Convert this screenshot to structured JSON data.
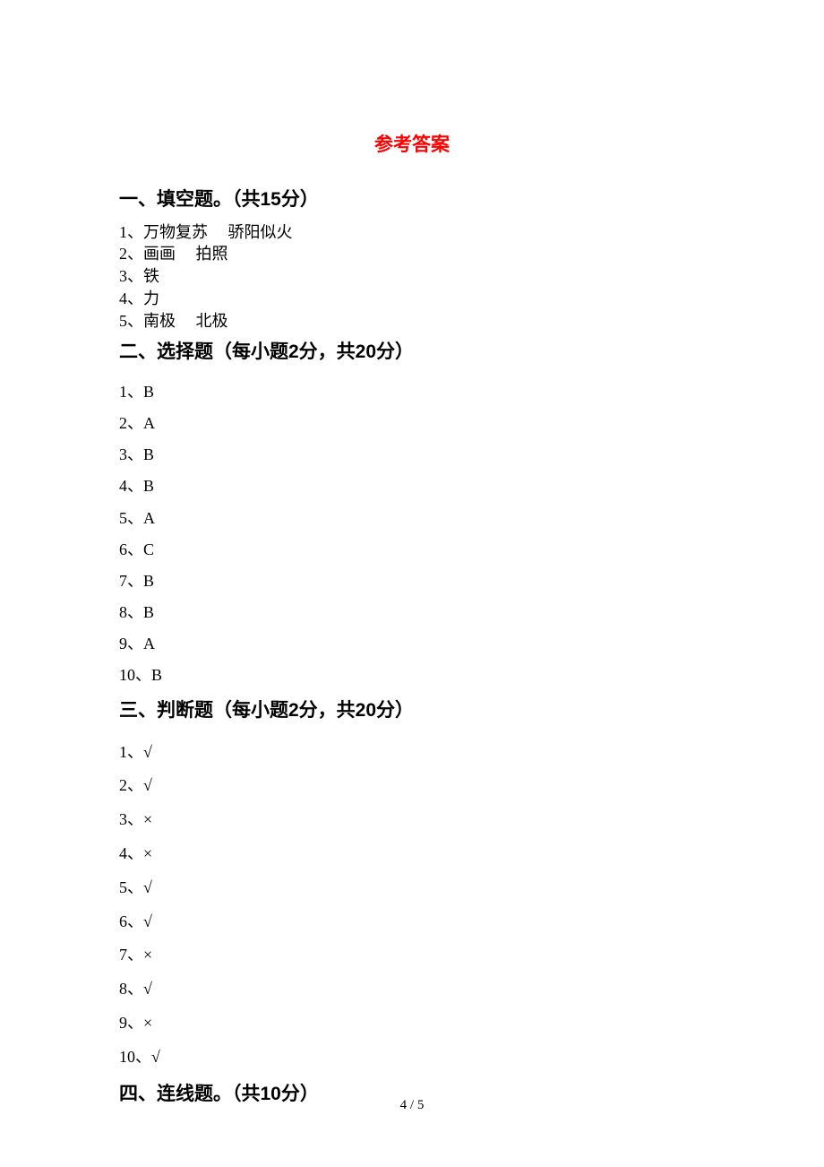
{
  "title": "参考答案",
  "sections": {
    "fill": {
      "heading": "一、填空题。（共15分）",
      "items": [
        "1、万物复苏  骄阳似火",
        "2、画画  拍照",
        "3、铁",
        "4、力",
        "5、南极  北极"
      ]
    },
    "choice": {
      "heading": "二、选择题（每小题2分，共20分）",
      "items": [
        "1、B",
        "2、A",
        "3、B",
        "4、B",
        "5、A",
        "6、C",
        "7、B",
        "8、B",
        "9、A",
        "10、B"
      ]
    },
    "judge": {
      "heading": "三、判断题（每小题2分，共20分）",
      "items": [
        "1、√",
        "2、√",
        "3、×",
        "4、×",
        "5、√",
        "6、√",
        "7、×",
        "8、√",
        "9、×",
        "10、√"
      ]
    },
    "match": {
      "heading": "四、连线题。（共10分）"
    }
  },
  "footer": "4 / 5",
  "colors": {
    "title_color": "#ff0000",
    "text_color": "#000000",
    "background_color": "#ffffff"
  },
  "typography": {
    "title_fontsize": 21,
    "heading_fontsize": 21,
    "body_fontsize": 18,
    "footer_fontsize": 15
  }
}
